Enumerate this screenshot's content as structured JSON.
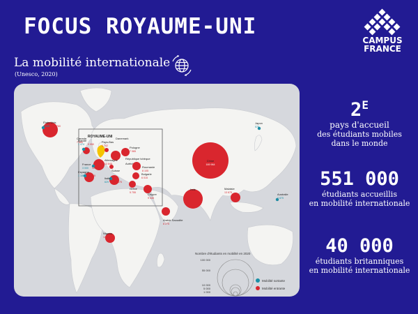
{
  "header": {
    "title": "FOCUS ROYAUME-UNI",
    "logo_line1": "CAMPUS",
    "logo_line2": "FRANCE"
  },
  "section": {
    "title": "La mobilité internationale",
    "source": "(Unesco, 2020)"
  },
  "stats": [
    {
      "value": "2",
      "suffix": "E",
      "lines": [
        "pays d'accueil",
        "des étudiants mobiles",
        "dans le monde"
      ]
    },
    {
      "value": "551 000",
      "lines": [
        "étudiants accueillis",
        "en mobilité internationale"
      ]
    },
    {
      "value": "40 000",
      "lines": [
        "étudiants britanniques",
        "en mobilité internationale"
      ]
    }
  ],
  "map": {
    "colors": {
      "outgoing": "#1a8fa6",
      "incoming": "#d9262e",
      "uk": "#f5c400",
      "land": "#f4f4f2",
      "sea": "#d6d8dd"
    },
    "countries": [
      {
        "name": "États-Unis",
        "outgoing": "9 645",
        "incoming": "19 760"
      },
      {
        "name": "Canada",
        "outgoing": "",
        "incoming": "7 380"
      },
      {
        "name": "Irlande",
        "outgoing": "1 474",
        "incoming": "9 950"
      },
      {
        "name": "Pays-Bas",
        "outgoing": "",
        "incoming": "1 742"
      },
      {
        "name": "Danemark",
        "outgoing": "",
        "incoming": ""
      },
      {
        "name": "Pologne",
        "outgoing": "",
        "incoming": "7 065"
      },
      {
        "name": "Allemagne",
        "outgoing": "",
        "incoming": "13 845"
      },
      {
        "name": "République tchèque",
        "outgoing": "",
        "incoming": ""
      },
      {
        "name": "France",
        "outgoing": "3 000",
        "incoming": "12 515"
      },
      {
        "name": "Autriche",
        "outgoing": "",
        "incoming": ""
      },
      {
        "name": "Suisse",
        "outgoing": "",
        "incoming": ""
      },
      {
        "name": "Roumanie",
        "outgoing": "",
        "incoming": "8 105"
      },
      {
        "name": "Bulgarie",
        "outgoing": "",
        "incoming": "6 015"
      },
      {
        "name": "Espagne",
        "outgoing": "1 186",
        "incoming": "10 585"
      },
      {
        "name": "Italie",
        "outgoing": "629",
        "incoming": "14 475"
      },
      {
        "name": "Grèce",
        "outgoing": "",
        "incoming": "5 755"
      },
      {
        "name": "Chypre",
        "outgoing": "",
        "incoming": "9 445"
      },
      {
        "name": "Japon",
        "outgoing": "575",
        "incoming": ""
      },
      {
        "name": "Chine",
        "outgoing": "",
        "incoming": "169 964"
      },
      {
        "name": "Inde",
        "outgoing": "",
        "incoming": "55 232"
      },
      {
        "name": "Malaisie",
        "outgoing": "",
        "incoming": "13 675"
      },
      {
        "name": "Australie",
        "outgoing": "2 875",
        "incoming": ""
      },
      {
        "name": "Arabie Saoudite",
        "outgoing": "",
        "incoming": "8 275"
      },
      {
        "name": "Nigeria",
        "outgoing": "",
        "incoming": "12 575"
      }
    ],
    "uk_label": "ROYAUME-UNI",
    "legend": {
      "title": "Nombre d'étudiants en mobilité en 2020",
      "scale": [
        "100 000",
        "55 000",
        "10 000",
        "5 000",
        "1 000"
      ],
      "outgoing_label": "Mobilité sortante",
      "incoming_label": "Mobilité entrante"
    }
  }
}
